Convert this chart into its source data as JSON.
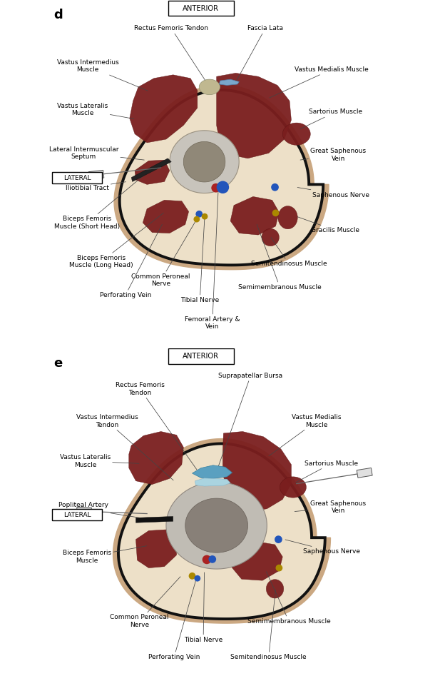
{
  "bg_color": "#ffffff",
  "skin_color": "#cba882",
  "fascia_color": "#ede0c8",
  "muscle_color": "#7a1e1e",
  "muscle_dark": "#6a1515",
  "bone_outer_color": "#c0bcb0",
  "bone_inner_color": "#888078",
  "blue_vessel_color": "#2255bb",
  "red_vessel_color": "#aa2222",
  "gold_nerve_color": "#aa8800",
  "light_blue_bursa": "#88c0d0",
  "light_blue_fluid": "#b8d8e0",
  "black_vessel_color": "#111111",
  "outline_color": "#111111",
  "panel_d_label": "d",
  "panel_e_label": "e",
  "anterior_label": "ANTERIOR",
  "lateral_label": "LATERAL",
  "font_size_ann": 6.5,
  "font_size_label": 13
}
